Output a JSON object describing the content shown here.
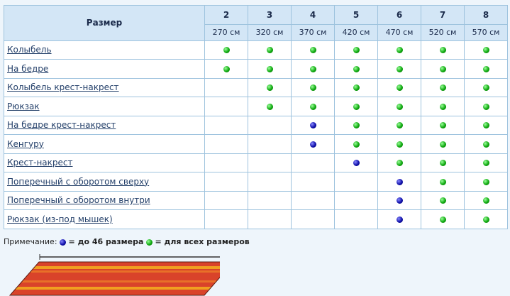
{
  "table": {
    "header": "Размер",
    "sizes": [
      "2",
      "3",
      "4",
      "5",
      "6",
      "7",
      "8"
    ],
    "lengths": [
      "270 см",
      "320 см",
      "370 см",
      "420 см",
      "470 см",
      "520 см",
      "570 см"
    ],
    "rows": [
      {
        "label": "Колыбель",
        "marks": [
          "g",
          "g",
          "g",
          "g",
          "g",
          "g",
          "g"
        ]
      },
      {
        "label": "На бедре",
        "marks": [
          "g",
          "g",
          "g",
          "g",
          "g",
          "g",
          "g"
        ]
      },
      {
        "label": "Колыбель крест-накрест",
        "marks": [
          "",
          "g",
          "g",
          "g",
          "g",
          "g",
          "g"
        ]
      },
      {
        "label": "Рюкзак",
        "marks": [
          "",
          "g",
          "g",
          "g",
          "g",
          "g",
          "g"
        ]
      },
      {
        "label": "На бедре крест-накрест",
        "marks": [
          "",
          "",
          "b",
          "g",
          "g",
          "g",
          "g"
        ]
      },
      {
        "label": "Кенгуру",
        "marks": [
          "",
          "",
          "b",
          "g",
          "g",
          "g",
          "g"
        ]
      },
      {
        "label": "Крест-накрест",
        "marks": [
          "",
          "",
          "",
          "b",
          "g",
          "g",
          "g"
        ]
      },
      {
        "label": "Поперечный с оборотом сверху",
        "marks": [
          "",
          "",
          "",
          "",
          "b",
          "g",
          "g"
        ]
      },
      {
        "label": "Поперечный с оборотом внутри",
        "marks": [
          "",
          "",
          "",
          "",
          "b",
          "g",
          "g"
        ]
      },
      {
        "label": "Рюкзак (из-под мышек)",
        "marks": [
          "",
          "",
          "",
          "",
          "b",
          "g",
          "g"
        ]
      }
    ]
  },
  "note": {
    "prefix": "Примечание:",
    "blue": "= до 46 размера",
    "green": "= для всех размеров"
  },
  "colors": {
    "green": "#1a1",
    "blue": "#11a",
    "header_bg": "#d3e6f6"
  }
}
